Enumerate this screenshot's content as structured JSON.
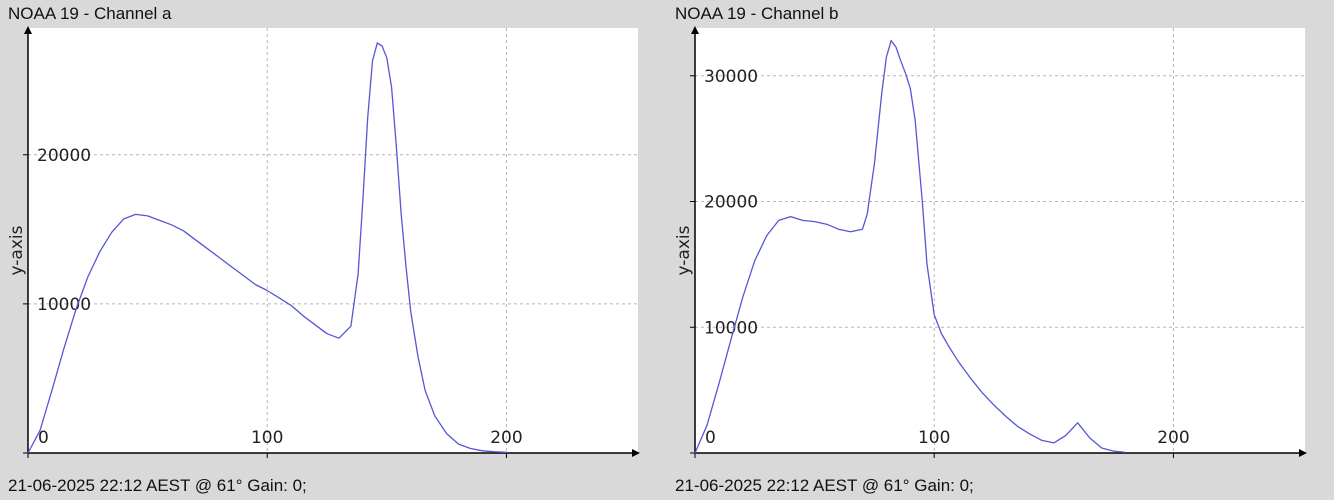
{
  "panels": [
    {
      "title": "NOAA 19 - Channel a",
      "footer": "21-06-2025 22:12 AEST @ 61° Gain: 0;",
      "ylabel": "y-axis"
    },
    {
      "title": "NOAA 19 - Channel b",
      "footer": "21-06-2025 22:12 AEST @ 61° Gain: 0;",
      "ylabel": "y-axis"
    }
  ],
  "colors": {
    "background": "#d9d9d9",
    "plot_area": "#ffffff",
    "line": "#5656d6",
    "grid": "#b5b5b5",
    "axis": "#000000"
  },
  "chart_data": [
    {
      "type": "line",
      "title": "NOAA 19 - Channel a",
      "xlabel": "",
      "ylabel": "y-axis",
      "xlim": [
        0,
        255
      ],
      "ylim": [
        0,
        28500
      ],
      "xticks": [
        0,
        100,
        200
      ],
      "yticks": [
        0,
        10000,
        20000
      ],
      "xtick_labels": [
        "0",
        "100",
        "200"
      ],
      "ytick_labels": [
        "10000",
        "20000"
      ],
      "grid": true,
      "series": [
        {
          "x": [
            0,
            5,
            10,
            15,
            20,
            25,
            30,
            35,
            40,
            45,
            50,
            55,
            60,
            65,
            70,
            75,
            80,
            85,
            90,
            95,
            100,
            105,
            110,
            115,
            120,
            125,
            130,
            135,
            138,
            140,
            142,
            144,
            146,
            148,
            150,
            152,
            154,
            156,
            158,
            160,
            163,
            166,
            170,
            175,
            180,
            185,
            190,
            195,
            200
          ],
          "y": [
            0,
            1500,
            4200,
            7000,
            9600,
            11800,
            13500,
            14800,
            15700,
            16000,
            15900,
            15600,
            15300,
            14900,
            14300,
            13700,
            13100,
            12500,
            11900,
            11300,
            10900,
            10400,
            9900,
            9200,
            8600,
            8000,
            7700,
            8500,
            12000,
            17000,
            22500,
            26300,
            27500,
            27300,
            26500,
            24500,
            20500,
            16000,
            12500,
            9500,
            6500,
            4200,
            2500,
            1300,
            600,
            300,
            150,
            80,
            50
          ]
        }
      ]
    },
    {
      "type": "line",
      "title": "NOAA 19 - Channel b",
      "xlabel": "",
      "ylabel": "y-axis",
      "xlim": [
        0,
        255
      ],
      "ylim": [
        0,
        33800
      ],
      "xticks": [
        0,
        100,
        200
      ],
      "yticks": [
        0,
        10000,
        20000,
        30000
      ],
      "xtick_labels": [
        "0",
        "100",
        "200"
      ],
      "ytick_labels": [
        "10000",
        "20000",
        "30000"
      ],
      "grid": true,
      "series": [
        {
          "x": [
            0,
            5,
            10,
            15,
            20,
            25,
            30,
            35,
            40,
            45,
            50,
            55,
            60,
            65,
            70,
            72,
            75,
            78,
            80,
            82,
            84,
            86,
            88,
            90,
            92,
            95,
            97,
            100,
            103,
            106,
            110,
            115,
            120,
            125,
            130,
            135,
            140,
            145,
            150,
            155,
            160,
            165,
            170,
            175,
            180
          ],
          "y": [
            0,
            2200,
            5500,
            9000,
            12400,
            15300,
            17300,
            18500,
            18800,
            18500,
            18400,
            18200,
            17800,
            17600,
            17800,
            19000,
            23000,
            28500,
            31500,
            32800,
            32300,
            31200,
            30200,
            29000,
            26500,
            20000,
            15000,
            11000,
            9500,
            8500,
            7300,
            6000,
            4800,
            3800,
            2900,
            2100,
            1500,
            1000,
            800,
            1400,
            2400,
            1200,
            400,
            150,
            50
          ]
        }
      ]
    }
  ]
}
